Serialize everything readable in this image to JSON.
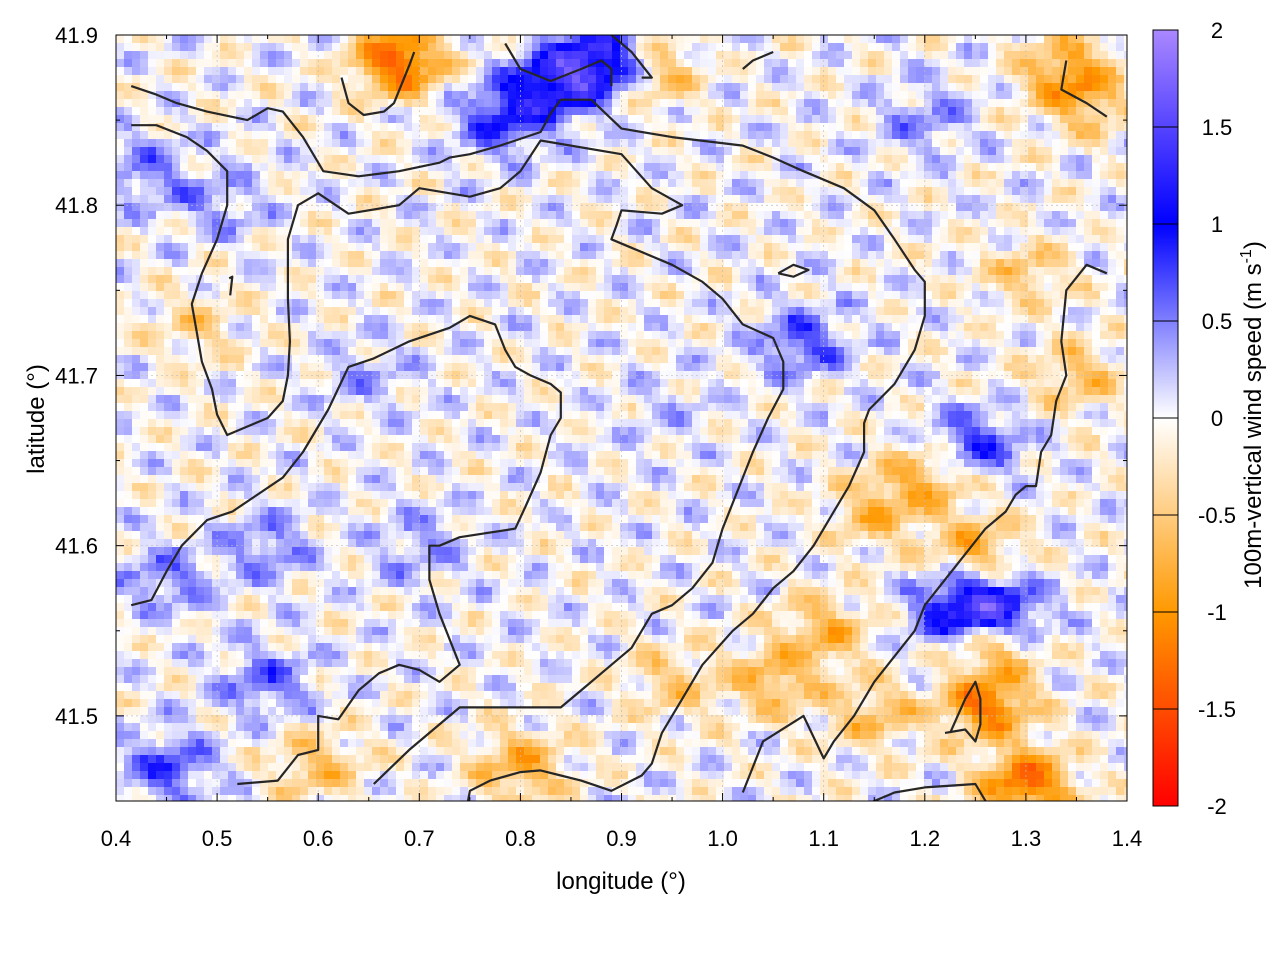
{
  "chart_data": {
    "type": "heatmap",
    "title": "",
    "xlabel": "longitude (°)",
    "ylabel": "latitude (°)",
    "xlim": [
      0.4,
      1.4
    ],
    "ylim": [
      41.45,
      41.9
    ],
    "x_ticks": [
      "0.4",
      "0.5",
      "0.6",
      "0.7",
      "0.8",
      "0.9",
      "1.0",
      "1.1",
      "1.2",
      "1.3",
      "1.4"
    ],
    "x_tick_values": [
      0.4,
      0.5,
      0.6,
      0.7,
      0.8,
      0.9,
      1.0,
      1.1,
      1.2,
      1.3,
      1.4
    ],
    "y_ticks": [
      "41.5",
      "41.6",
      "41.7",
      "41.8",
      "41.9"
    ],
    "y_tick_values": [
      41.5,
      41.6,
      41.7,
      41.8,
      41.9
    ],
    "grid": true,
    "colorbar": {
      "label_main": "100m-vertical wind speed (m s",
      "label_sup": "-1",
      "label_end": ")",
      "range": [
        -2,
        2
      ],
      "ticks": [
        "2",
        "1.5",
        "1",
        "0.5",
        "0",
        "-0.5",
        "-1",
        "-1.5",
        "-2"
      ],
      "tick_values": [
        2,
        1.5,
        1,
        0.5,
        0,
        -0.5,
        -1,
        -1.5,
        -2
      ],
      "colors": [
        {
          "value": -2,
          "color": "#ff0000"
        },
        {
          "value": -1,
          "color": "#ff9900"
        },
        {
          "value": 0,
          "color": "#ffffff"
        },
        {
          "value": 1,
          "color": "#0000ff"
        },
        {
          "value": 2,
          "color": "#aa88ff"
        }
      ]
    },
    "field_hotspots": [
      {
        "lon": 0.88,
        "lat": 41.885,
        "w": 1.5,
        "note": "blue"
      },
      {
        "lon": 0.83,
        "lat": 41.87,
        "w": 1.1
      },
      {
        "lon": 0.78,
        "lat": 41.85,
        "w": 0.8
      },
      {
        "lon": 0.68,
        "lat": 41.885,
        "w": -1.4
      },
      {
        "lon": 0.93,
        "lat": 41.88,
        "w": -0.7
      },
      {
        "lon": 1.34,
        "lat": 41.88,
        "w": -0.8
      },
      {
        "lon": 1.36,
        "lat": 41.86,
        "w": -0.6
      },
      {
        "lon": 1.27,
        "lat": 41.56,
        "w": 1.3
      },
      {
        "lon": 1.23,
        "lat": 41.56,
        "w": 1.0
      },
      {
        "lon": 1.26,
        "lat": 41.54,
        "w": -1.5
      },
      {
        "lon": 1.255,
        "lat": 41.525,
        "w": 1.0
      },
      {
        "lon": 1.26,
        "lat": 41.51,
        "w": -1.6
      },
      {
        "lon": 1.3,
        "lat": 41.46,
        "w": -1.3
      },
      {
        "lon": 1.08,
        "lat": 41.72,
        "w": 0.7
      },
      {
        "lon": 1.25,
        "lat": 41.66,
        "w": 0.8
      },
      {
        "lon": 1.2,
        "lat": 41.64,
        "w": -0.7
      },
      {
        "lon": 1.15,
        "lat": 41.62,
        "w": -0.6
      },
      {
        "lon": 1.25,
        "lat": 41.6,
        "w": -0.7
      },
      {
        "lon": 1.1,
        "lat": 41.55,
        "w": -0.7
      },
      {
        "lon": 1.05,
        "lat": 41.52,
        "w": -0.7
      },
      {
        "lon": 1.15,
        "lat": 41.5,
        "w": -0.6
      },
      {
        "lon": 0.95,
        "lat": 41.52,
        "w": -0.5
      },
      {
        "lon": 0.8,
        "lat": 41.47,
        "w": -0.8
      },
      {
        "lon": 0.6,
        "lat": 41.47,
        "w": -0.6
      },
      {
        "lon": 0.45,
        "lat": 41.47,
        "w": 0.7
      },
      {
        "lon": 0.55,
        "lat": 41.52,
        "w": 0.6
      },
      {
        "lon": 0.45,
        "lat": 41.58,
        "w": 0.5
      },
      {
        "lon": 0.55,
        "lat": 41.6,
        "w": 0.5
      },
      {
        "lon": 0.43,
        "lat": 41.82,
        "w": 0.5
      },
      {
        "lon": 0.5,
        "lat": 41.8,
        "w": 0.4
      },
      {
        "lon": 0.48,
        "lat": 41.73,
        "w": -0.4
      },
      {
        "lon": 0.7,
        "lat": 41.6,
        "w": 0.4
      },
      {
        "lon": 1.3,
        "lat": 41.76,
        "w": -0.5
      },
      {
        "lon": 1.35,
        "lat": 41.7,
        "w": -0.6
      },
      {
        "lon": 1.2,
        "lat": 41.85,
        "w": 0.4
      },
      {
        "lon": 0.65,
        "lat": 41.7,
        "w": 0.3
      },
      {
        "lon": 0.95,
        "lat": 41.68,
        "w": 0.2
      }
    ],
    "contour_lines": [
      [
        [
          0.415,
          41.87
        ],
        [
          0.44,
          41.865
        ],
        [
          0.46,
          41.86
        ],
        [
          0.49,
          41.855
        ],
        [
          0.53,
          41.85
        ],
        [
          0.55,
          41.857
        ],
        [
          0.565,
          41.855
        ],
        [
          0.585,
          41.84
        ],
        [
          0.605,
          41.82
        ],
        [
          0.64,
          41.817
        ],
        [
          0.68,
          41.82
        ],
        [
          0.72,
          41.825
        ],
        [
          0.73,
          41.828
        ],
        [
          0.75,
          41.83
        ],
        [
          0.78,
          41.835
        ],
        [
          0.82,
          41.843
        ],
        [
          0.83,
          41.854
        ],
        [
          0.84,
          41.862
        ],
        [
          0.87,
          41.862
        ],
        [
          0.9,
          41.845
        ],
        [
          0.95,
          41.84
        ],
        [
          1.02,
          41.835
        ],
        [
          1.05,
          41.828
        ],
        [
          1.08,
          41.82
        ],
        [
          1.12,
          41.81
        ],
        [
          1.15,
          41.797
        ],
        [
          1.17,
          41.78
        ],
        [
          1.19,
          41.762
        ],
        [
          1.2,
          41.755
        ],
        [
          1.2,
          41.735
        ],
        [
          1.19,
          41.715
        ],
        [
          1.17,
          41.695
        ],
        [
          1.145,
          41.68
        ],
        [
          1.14,
          41.672
        ],
        [
          1.14,
          41.655
        ],
        [
          1.125,
          41.635
        ],
        [
          1.11,
          41.62
        ],
        [
          1.09,
          41.6
        ],
        [
          1.07,
          41.585
        ],
        [
          1.05,
          41.575
        ],
        [
          1.03,
          41.56
        ],
        [
          1.01,
          41.55
        ],
        [
          0.98,
          41.53
        ],
        [
          0.96,
          41.51
        ],
        [
          0.94,
          41.49
        ],
        [
          0.93,
          41.472
        ],
        [
          0.92,
          41.465
        ],
        [
          0.89,
          41.456
        ],
        [
          0.86,
          41.462
        ],
        [
          0.84,
          41.465
        ],
        [
          0.82,
          41.468
        ],
        [
          0.8,
          41.467
        ],
        [
          0.77,
          41.462
        ],
        [
          0.75,
          41.456
        ],
        [
          0.745,
          41.44
        ]
      ],
      [
        [
          0.415,
          41.847
        ],
        [
          0.44,
          41.847
        ],
        [
          0.47,
          41.84
        ],
        [
          0.49,
          41.832
        ],
        [
          0.51,
          41.82
        ],
        [
          0.51,
          41.8
        ],
        [
          0.5,
          41.78
        ],
        [
          0.485,
          41.76
        ],
        [
          0.475,
          41.742
        ],
        [
          0.48,
          41.725
        ],
        [
          0.485,
          41.708
        ],
        [
          0.495,
          41.692
        ],
        [
          0.5,
          41.677
        ],
        [
          0.51,
          41.665
        ],
        [
          0.53,
          41.67
        ],
        [
          0.55,
          41.675
        ],
        [
          0.565,
          41.685
        ],
        [
          0.57,
          41.7
        ],
        [
          0.572,
          41.72
        ],
        [
          0.57,
          41.745
        ],
        [
          0.57,
          41.78
        ],
        [
          0.58,
          41.8
        ],
        [
          0.6,
          41.807
        ],
        [
          0.63,
          41.795
        ],
        [
          0.68,
          41.8
        ],
        [
          0.7,
          41.81
        ],
        [
          0.75,
          41.805
        ],
        [
          0.78,
          41.81
        ],
        [
          0.8,
          41.82
        ],
        [
          0.82,
          41.838
        ],
        [
          0.9,
          41.83
        ],
        [
          0.93,
          41.81
        ],
        [
          0.96,
          41.8
        ],
        [
          0.94,
          41.795
        ],
        [
          0.9,
          41.797
        ],
        [
          0.895,
          41.788
        ],
        [
          0.89,
          41.78
        ],
        [
          0.91,
          41.775
        ],
        [
          0.95,
          41.765
        ],
        [
          0.98,
          41.755
        ],
        [
          1.0,
          41.745
        ],
        [
          1.02,
          41.73
        ],
        [
          1.05,
          41.722
        ],
        [
          1.06,
          41.708
        ],
        [
          1.06,
          41.692
        ],
        [
          1.045,
          41.675
        ],
        [
          1.03,
          41.655
        ],
        [
          1.02,
          41.64
        ],
        [
          1.01,
          41.625
        ],
        [
          1.0,
          41.61
        ],
        [
          0.99,
          41.59
        ],
        [
          0.97,
          41.575
        ],
        [
          0.95,
          41.565
        ],
        [
          0.93,
          41.56
        ],
        [
          0.91,
          41.54
        ],
        [
          0.89,
          41.53
        ],
        [
          0.86,
          41.515
        ],
        [
          0.84,
          41.505
        ],
        [
          0.81,
          41.505
        ],
        [
          0.79,
          41.505
        ],
        [
          0.74,
          41.505
        ],
        [
          0.71,
          41.49
        ],
        [
          0.69,
          41.48
        ],
        [
          0.655,
          41.46
        ]
      ],
      [
        [
          0.415,
          41.565
        ],
        [
          0.435,
          41.568
        ],
        [
          0.45,
          41.585
        ],
        [
          0.465,
          41.6
        ],
        [
          0.49,
          41.615
        ],
        [
          0.515,
          41.62
        ],
        [
          0.54,
          41.63
        ],
        [
          0.565,
          41.64
        ],
        [
          0.585,
          41.655
        ],
        [
          0.61,
          41.68
        ],
        [
          0.63,
          41.705
        ],
        [
          0.655,
          41.71
        ],
        [
          0.69,
          41.72
        ],
        [
          0.73,
          41.728
        ],
        [
          0.75,
          41.735
        ],
        [
          0.775,
          41.73
        ],
        [
          0.785,
          41.715
        ],
        [
          0.795,
          41.705
        ],
        [
          0.81,
          41.7
        ],
        [
          0.83,
          41.695
        ],
        [
          0.84,
          41.69
        ],
        [
          0.84,
          41.675
        ],
        [
          0.83,
          41.665
        ],
        [
          0.82,
          41.643
        ],
        [
          0.805,
          41.623
        ],
        [
          0.795,
          41.61
        ],
        [
          0.74,
          41.605
        ],
        [
          0.72,
          41.6
        ],
        [
          0.71,
          41.6
        ],
        [
          0.71,
          41.58
        ],
        [
          0.72,
          41.56
        ],
        [
          0.73,
          41.545
        ],
        [
          0.74,
          41.53
        ],
        [
          0.73,
          41.525
        ],
        [
          0.72,
          41.52
        ],
        [
          0.7,
          41.527
        ],
        [
          0.68,
          41.53
        ],
        [
          0.66,
          41.525
        ],
        [
          0.64,
          41.515
        ],
        [
          0.62,
          41.498
        ],
        [
          0.6,
          41.5
        ],
        [
          0.6,
          41.48
        ],
        [
          0.58,
          41.477
        ],
        [
          0.56,
          41.462
        ],
        [
          0.52,
          41.46
        ]
      ],
      [
        [
          0.512,
          41.757
        ],
        [
          0.515,
          41.758
        ],
        [
          0.513,
          41.747
        ]
      ],
      [
        [
          0.623,
          41.875
        ],
        [
          0.63,
          41.86
        ],
        [
          0.645,
          41.853
        ],
        [
          0.665,
          41.855
        ],
        [
          0.675,
          41.86
        ],
        [
          0.69,
          41.882
        ],
        [
          0.695,
          41.89
        ]
      ],
      [
        [
          0.785,
          41.895
        ],
        [
          0.8,
          41.88
        ],
        [
          0.83,
          41.873
        ],
        [
          0.86,
          41.88
        ],
        [
          0.88,
          41.885
        ],
        [
          0.89,
          41.88
        ],
        [
          0.89,
          41.87
        ]
      ],
      [
        [
          0.89,
          41.9
        ],
        [
          0.91,
          41.89
        ],
        [
          0.93,
          41.875
        ],
        [
          0.92,
          41.875
        ]
      ],
      [
        [
          1.02,
          41.88
        ],
        [
          1.03,
          41.885
        ],
        [
          1.05,
          41.89
        ]
      ],
      [
        [
          1.34,
          41.885
        ],
        [
          1.335,
          41.868
        ],
        [
          1.36,
          41.86
        ],
        [
          1.38,
          41.852
        ]
      ],
      [
        [
          1.055,
          41.76
        ],
        [
          1.07,
          41.765
        ],
        [
          1.085,
          41.762
        ],
        [
          1.07,
          41.758
        ],
        [
          1.055,
          41.76
        ]
      ],
      [
        [
          1.38,
          41.76
        ],
        [
          1.36,
          41.765
        ],
        [
          1.34,
          41.75
        ],
        [
          1.335,
          41.72
        ],
        [
          1.34,
          41.7
        ],
        [
          1.33,
          41.685
        ],
        [
          1.325,
          41.665
        ],
        [
          1.315,
          41.655
        ],
        [
          1.31,
          41.635
        ],
        [
          1.3,
          41.635
        ],
        [
          1.29,
          41.63
        ],
        [
          1.28,
          41.62
        ],
        [
          1.26,
          41.61
        ],
        [
          1.24,
          41.595
        ],
        [
          1.22,
          41.58
        ],
        [
          1.2,
          41.565
        ],
        [
          1.19,
          41.55
        ],
        [
          1.17,
          41.535
        ],
        [
          1.15,
          41.52
        ],
        [
          1.13,
          41.5
        ],
        [
          1.11,
          41.485
        ],
        [
          1.1,
          41.475
        ],
        [
          1.08,
          41.5
        ],
        [
          1.04,
          41.485
        ],
        [
          1.03,
          41.47
        ],
        [
          1.02,
          41.455
        ]
      ],
      [
        [
          1.22,
          41.49
        ],
        [
          1.24,
          41.492
        ],
        [
          1.25,
          41.485
        ],
        [
          1.255,
          41.495
        ],
        [
          1.255,
          41.51
        ],
        [
          1.25,
          41.52
        ],
        [
          1.24,
          41.51
        ],
        [
          1.225,
          41.49
        ]
      ],
      [
        [
          1.11,
          41.44
        ],
        [
          1.13,
          41.445
        ],
        [
          1.17,
          41.455
        ],
        [
          1.2,
          41.458
        ],
        [
          1.25,
          41.46
        ],
        [
          1.27,
          41.44
        ]
      ]
    ]
  }
}
